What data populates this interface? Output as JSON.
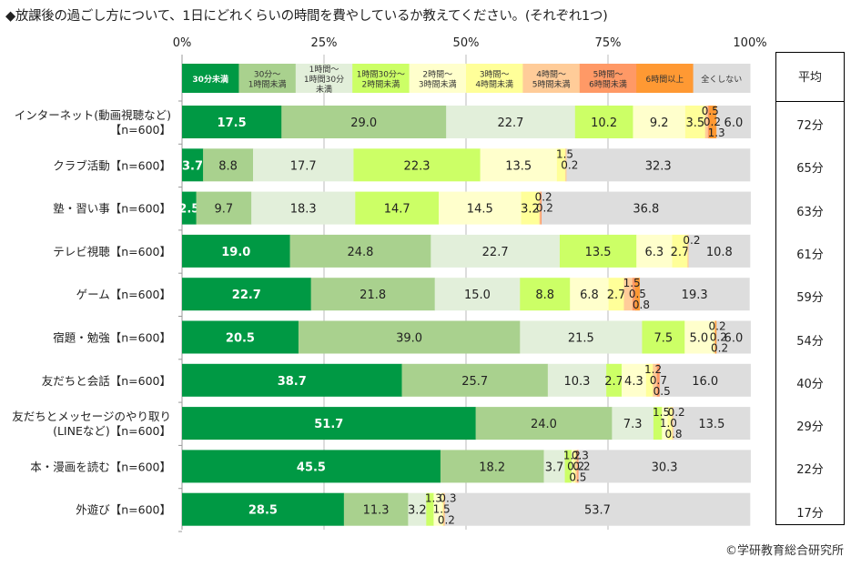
{
  "title": "◆放課後の過ごし方について、1日にどれくらいの時間を費やしているか教えてください。(それぞれ1つ)",
  "copyright": "©学研教育総合研究所",
  "avg_header": "平均",
  "chart_data": {
    "type": "bar",
    "orientation": "horizontal-stacked-100",
    "title": "◆放課後の過ごし方について、1日にどれくらいの時間を費やしているか教えてください。(それぞれ1つ)",
    "xlabel": "",
    "ylabel": "",
    "xlim": [
      0,
      100
    ],
    "x_ticks": [
      "0%",
      "25%",
      "50%",
      "75%",
      "100%"
    ],
    "grid": true,
    "legend_position": "top",
    "series": [
      {
        "name": "30分未満",
        "color": "#009944",
        "text_color": "#ffffff",
        "values": [
          17.5,
          3.7,
          2.5,
          19.0,
          22.7,
          20.5,
          38.7,
          51.7,
          45.5,
          28.5
        ]
      },
      {
        "name": "30分～\n1時間未満",
        "color": "#a9d18e",
        "text_color": "#222222",
        "values": [
          29.0,
          8.8,
          9.7,
          24.8,
          21.8,
          39.0,
          25.7,
          24.0,
          18.2,
          11.3
        ]
      },
      {
        "name": "1時間～\n1時間30分\n未満",
        "color": "#e2efda",
        "text_color": "#222222",
        "values": [
          22.7,
          17.7,
          18.3,
          22.7,
          15.0,
          21.5,
          10.3,
          7.3,
          3.7,
          3.2
        ]
      },
      {
        "name": "1時間30分～\n2時間未満",
        "color": "#ccff66",
        "text_color": "#222222",
        "values": [
          10.2,
          22.3,
          14.7,
          13.5,
          8.8,
          7.5,
          2.7,
          1.5,
          1.2,
          1.3
        ]
      },
      {
        "name": "2時間～\n3時間未満",
        "color": "#ffffcc",
        "text_color": "#222222",
        "values": [
          9.2,
          13.5,
          14.5,
          6.3,
          6.8,
          5.0,
          4.3,
          1.0,
          0.2,
          1.5
        ]
      },
      {
        "name": "3時間～\n4時間未満",
        "color": "#ffff99",
        "text_color": "#222222",
        "values": [
          3.5,
          1.5,
          3.2,
          2.7,
          2.7,
          0.2,
          1.2,
          0.8,
          0.5,
          0.2
        ]
      },
      {
        "name": "4時間～\n5時間未満",
        "color": "#ffcc99",
        "text_color": "#222222",
        "values": [
          0.5,
          0.2,
          0.2,
          0.2,
          1.5,
          0.2,
          0.7,
          0.2,
          0.3,
          0.3
        ]
      },
      {
        "name": "5時間～\n6時間未満",
        "color": "#ff9966",
        "text_color": "#222222",
        "values": [
          0.2,
          0,
          0.2,
          0,
          0.5,
          0,
          0.5,
          0,
          0.2,
          0
        ]
      },
      {
        "name": "6時間以上",
        "color": "#ff9933",
        "text_color": "#222222",
        "values": [
          1.3,
          0,
          0,
          0,
          0.8,
          0.2,
          0,
          0,
          0,
          0
        ]
      },
      {
        "name": "全くしない",
        "color": "#dddddd",
        "text_color": "#222222",
        "values": [
          6.0,
          32.3,
          36.8,
          10.8,
          19.3,
          6.0,
          16.0,
          13.5,
          30.3,
          53.7
        ]
      }
    ],
    "categories": [
      "インターネット(動画視聴など)\n【n=600】",
      "クラブ活動【n=600】",
      "塾・習い事【n=600】",
      "テレビ視聴【n=600】",
      "ゲーム【n=600】",
      "宿題・勉強【n=600】",
      "友だちと会話【n=600】",
      "友だちとメッセージのやり取り\n(LINEなど)【n=600】",
      "本・漫画を読む【n=600】",
      "外遊び【n=600】"
    ],
    "averages": [
      "72分",
      "65分",
      "63分",
      "61分",
      "59分",
      "54分",
      "40分",
      "29分",
      "22分",
      "17分"
    ]
  }
}
